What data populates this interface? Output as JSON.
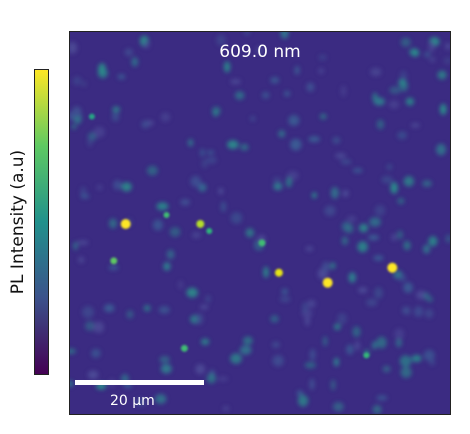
{
  "image": {
    "wavelength_label": "609.0 nm",
    "scale_bar_label": "20 µm",
    "colormap": [
      "#440154",
      "#3b528b",
      "#21918c",
      "#5ec962",
      "#fde725"
    ],
    "background_color": "#3b2b82"
  },
  "colorbar": {
    "label": "PL Intensity (a.u)"
  }
}
